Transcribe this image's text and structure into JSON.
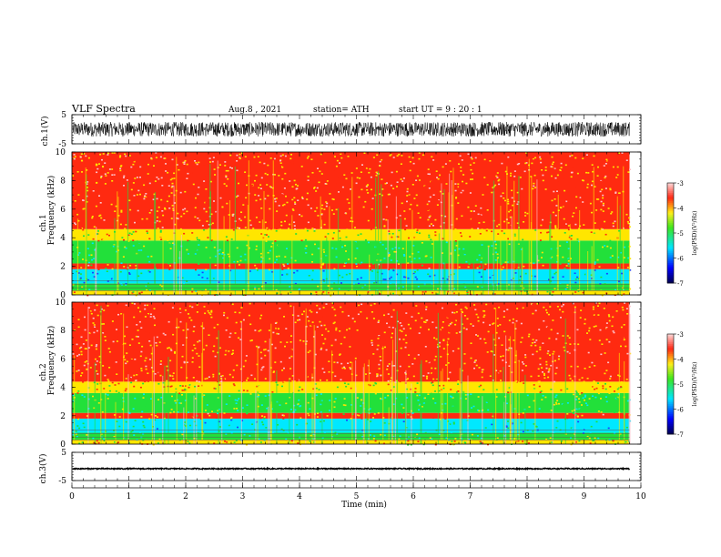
{
  "header": {
    "title": "VLF  Spectra",
    "date": "Aug.8  , 2021",
    "station": "station= ATH",
    "start": "start  UT  =    9  : 20 : 1"
  },
  "chart_data": [
    {
      "type": "line",
      "panel": "ch1-waveform",
      "ylabel": "ch.1(V)",
      "ylim": [
        -5,
        5
      ],
      "yticks": [
        "5",
        "-5"
      ],
      "xlim": [
        0,
        10
      ],
      "data_extent_min": 9.8,
      "series": [
        {
          "values_range": [
            -2.5,
            2.5
          ],
          "baseline": 0
        }
      ]
    },
    {
      "type": "heatmap",
      "panel": "ch1-spectrogram",
      "ylabel": "ch.1\nFrequency (kHz)",
      "ylabel_line1": "ch.1",
      "ylabel_line2": "Frequency  (kHz)",
      "ylim": [
        0,
        10
      ],
      "yticks": [
        "0",
        "2",
        "4",
        "6",
        "8",
        "10"
      ],
      "xlim": [
        0,
        10
      ],
      "data_extent_min": 9.8,
      "zlim": [
        -7,
        -3
      ],
      "colorbar_label": "log(PSD)(V²/Hz)",
      "colorbar_ticks": [
        "-3",
        "-4",
        "-5",
        "-6",
        "-7"
      ],
      "bands_khz": [
        {
          "range": [
            0,
            0.3
          ],
          "level": -4.2
        },
        {
          "range": [
            0.3,
            0.8
          ],
          "level": -5.0
        },
        {
          "range": [
            0.8,
            1.8
          ],
          "level": -5.8
        },
        {
          "range": [
            1.8,
            2.2
          ],
          "level": -4.0
        },
        {
          "range": [
            2.2,
            3.8
          ],
          "level": -5.0
        },
        {
          "range": [
            3.8,
            4.6
          ],
          "level": -4.3
        },
        {
          "range": [
            4.6,
            10
          ],
          "level": -3.8
        }
      ]
    },
    {
      "type": "heatmap",
      "panel": "ch2-spectrogram",
      "ylabel_line1": "ch.2",
      "ylabel_line2": "Frequency  (kHz)",
      "ylim": [
        0,
        10
      ],
      "yticks": [
        "0",
        "2",
        "4",
        "6",
        "8",
        "10"
      ],
      "xlim": [
        0,
        10
      ],
      "data_extent_min": 9.8,
      "zlim": [
        -7,
        -3
      ],
      "colorbar_label": "log(PSD)(V²/Hz)",
      "colorbar_ticks": [
        "-3",
        "-4",
        "-5",
        "-6",
        "-7"
      ],
      "bands_khz": [
        {
          "range": [
            0,
            0.3
          ],
          "level": -4.2
        },
        {
          "range": [
            0.3,
            0.8
          ],
          "level": -5.0
        },
        {
          "range": [
            0.8,
            1.8
          ],
          "level": -5.6
        },
        {
          "range": [
            1.8,
            2.2
          ],
          "level": -4.0
        },
        {
          "range": [
            2.2,
            3.6
          ],
          "level": -5.0
        },
        {
          "range": [
            3.6,
            4.4
          ],
          "level": -4.3
        },
        {
          "range": [
            4.4,
            10
          ],
          "level": -3.8
        }
      ]
    },
    {
      "type": "line",
      "panel": "ch3-waveform",
      "ylabel": "ch.3(V)",
      "ylim": [
        -5,
        5
      ],
      "yticks": [
        "5",
        "-5"
      ],
      "xlim": [
        0,
        10
      ],
      "data_extent_min": 9.8,
      "series": [
        {
          "values_range": [
            -0.2,
            0.2
          ],
          "baseline": -0.8
        }
      ]
    }
  ],
  "xaxis": {
    "label": "Time  (min)",
    "ticks": [
      "0",
      "1",
      "2",
      "3",
      "4",
      "5",
      "6",
      "7",
      "8",
      "9",
      "10"
    ]
  },
  "colors": {
    "red": "#ff2a10",
    "yellow": "#ffe600",
    "green": "#22e03a",
    "cyan": "#00e8ff",
    "blue": "#1c3cff",
    "pink": "#ffc0c8"
  }
}
